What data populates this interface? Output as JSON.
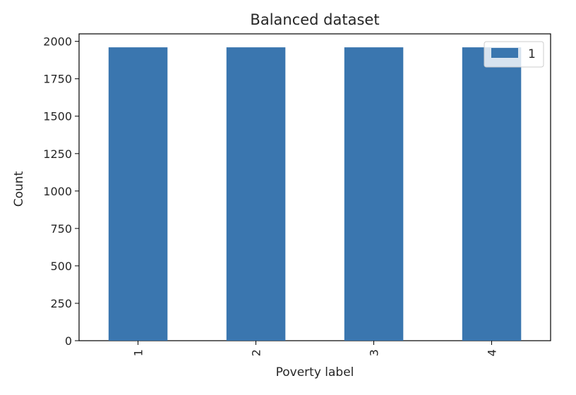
{
  "chart_data": {
    "type": "bar",
    "title": "Balanced dataset",
    "xlabel": "Poverty label",
    "ylabel": "Count",
    "categories": [
      "1",
      "2",
      "3",
      "4"
    ],
    "series": [
      {
        "name": "1",
        "values": [
          1960,
          1960,
          1960,
          1960
        ],
        "color": "#3a76af"
      }
    ],
    "ylim": [
      0,
      2050
    ],
    "yticks": [
      0,
      250,
      500,
      750,
      1000,
      1250,
      1500,
      1750,
      2000
    ],
    "xtick_rotation": "vertical",
    "grid": false,
    "legend": {
      "position": "top-right"
    }
  }
}
